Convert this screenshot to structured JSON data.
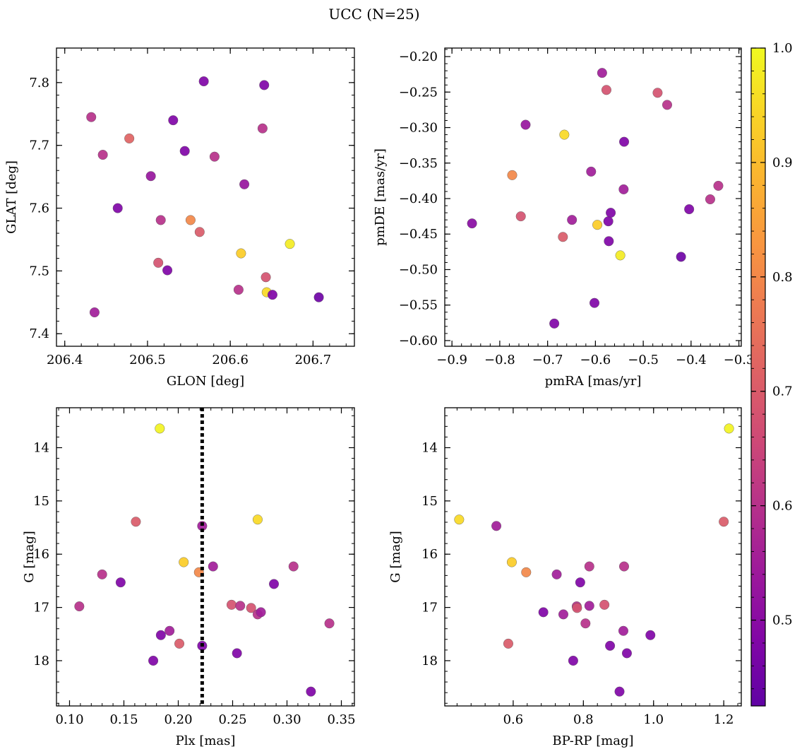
{
  "figure": {
    "title": "UCC (N=25)"
  },
  "colorbar": {
    "colormap": "plasma",
    "range": [
      0.425,
      1.0
    ],
    "ticks": [
      0.5,
      0.6,
      0.7,
      0.8,
      0.9,
      1.0
    ],
    "tick_labels": [
      "0.5",
      "0.6",
      "0.7",
      "0.8",
      "0.9",
      "1.0"
    ]
  },
  "chart_data": [
    {
      "type": "scatter",
      "id": "glon-glat",
      "xlabel": "GLON [deg]",
      "ylabel": "GLAT [deg]",
      "xlim": [
        206.39,
        206.75
      ],
      "ylim": [
        7.38,
        7.855
      ],
      "xticks": [
        206.4,
        206.5,
        206.6,
        206.7
      ],
      "xtick_labels": [
        "206.4",
        "206.5",
        "206.6",
        "206.7"
      ],
      "yticks": [
        7.4,
        7.5,
        7.6,
        7.7,
        7.8
      ],
      "ytick_labels": [
        "7.4",
        "7.5",
        "7.6",
        "7.7",
        "7.8"
      ],
      "points": [
        {
          "x": 206.568,
          "y": 7.802,
          "c": 0.48
        },
        {
          "x": 206.641,
          "y": 7.796,
          "c": 0.48
        },
        {
          "x": 206.432,
          "y": 7.745,
          "c": 0.6
        },
        {
          "x": 206.531,
          "y": 7.74,
          "c": 0.48
        },
        {
          "x": 206.639,
          "y": 7.727,
          "c": 0.6
        },
        {
          "x": 206.478,
          "y": 7.711,
          "c": 0.72
        },
        {
          "x": 206.545,
          "y": 7.691,
          "c": 0.48
        },
        {
          "x": 206.446,
          "y": 7.685,
          "c": 0.6
        },
        {
          "x": 206.581,
          "y": 7.682,
          "c": 0.6
        },
        {
          "x": 206.504,
          "y": 7.651,
          "c": 0.53
        },
        {
          "x": 206.617,
          "y": 7.638,
          "c": 0.53
        },
        {
          "x": 206.464,
          "y": 7.6,
          "c": 0.48
        },
        {
          "x": 206.516,
          "y": 7.581,
          "c": 0.6
        },
        {
          "x": 206.552,
          "y": 7.581,
          "c": 0.8
        },
        {
          "x": 206.563,
          "y": 7.562,
          "c": 0.7
        },
        {
          "x": 206.672,
          "y": 7.543,
          "c": 0.98
        },
        {
          "x": 206.613,
          "y": 7.528,
          "c": 0.93
        },
        {
          "x": 206.513,
          "y": 7.513,
          "c": 0.68
        },
        {
          "x": 206.524,
          "y": 7.501,
          "c": 0.48
        },
        {
          "x": 206.643,
          "y": 7.49,
          "c": 0.68
        },
        {
          "x": 206.61,
          "y": 7.47,
          "c": 0.6
        },
        {
          "x": 206.644,
          "y": 7.466,
          "c": 0.95
        },
        {
          "x": 206.651,
          "y": 7.462,
          "c": 0.48
        },
        {
          "x": 206.707,
          "y": 7.458,
          "c": 0.45
        },
        {
          "x": 206.436,
          "y": 7.434,
          "c": 0.55
        }
      ]
    },
    {
      "type": "scatter",
      "id": "pmra-pmde",
      "xlabel": "pmRA [mas/yr]",
      "ylabel": "pmDE [mas/yr]",
      "xlim": [
        -0.915,
        -0.295
      ],
      "ylim": [
        -0.608,
        -0.188
      ],
      "xticks": [
        -0.9,
        -0.8,
        -0.7,
        -0.6,
        -0.5,
        -0.4,
        -0.3
      ],
      "xtick_labels": [
        "−0.9",
        "−0.8",
        "−0.7",
        "−0.6",
        "−0.5",
        "−0.4",
        "−0.3"
      ],
      "yticks": [
        -0.6,
        -0.55,
        -0.5,
        -0.45,
        -0.4,
        -0.35,
        -0.3,
        -0.25,
        -0.2
      ],
      "ytick_labels": [
        "−0.60",
        "−0.55",
        "−0.50",
        "−0.45",
        "−0.40",
        "−0.35",
        "−0.30",
        "−0.25",
        "−0.20"
      ],
      "points": [
        {
          "x": -0.586,
          "y": -0.223,
          "c": 0.55
        },
        {
          "x": -0.577,
          "y": -0.247,
          "c": 0.68
        },
        {
          "x": -0.47,
          "y": -0.251,
          "c": 0.68
        },
        {
          "x": -0.45,
          "y": -0.268,
          "c": 0.6
        },
        {
          "x": -0.746,
          "y": -0.296,
          "c": 0.53
        },
        {
          "x": -0.665,
          "y": -0.31,
          "c": 0.95
        },
        {
          "x": -0.54,
          "y": -0.32,
          "c": 0.48
        },
        {
          "x": -0.609,
          "y": -0.362,
          "c": 0.55
        },
        {
          "x": -0.774,
          "y": -0.367,
          "c": 0.8
        },
        {
          "x": -0.541,
          "y": -0.387,
          "c": 0.55
        },
        {
          "x": -0.343,
          "y": -0.382,
          "c": 0.6
        },
        {
          "x": -0.36,
          "y": -0.401,
          "c": 0.6
        },
        {
          "x": -0.404,
          "y": -0.415,
          "c": 0.48
        },
        {
          "x": -0.568,
          "y": -0.42,
          "c": 0.48
        },
        {
          "x": -0.756,
          "y": -0.425,
          "c": 0.68
        },
        {
          "x": -0.649,
          "y": -0.43,
          "c": 0.55
        },
        {
          "x": -0.573,
          "y": -0.432,
          "c": 0.48
        },
        {
          "x": -0.596,
          "y": -0.437,
          "c": 0.93
        },
        {
          "x": -0.858,
          "y": -0.435,
          "c": 0.5
        },
        {
          "x": -0.668,
          "y": -0.454,
          "c": 0.7
        },
        {
          "x": -0.572,
          "y": -0.46,
          "c": 0.48
        },
        {
          "x": -0.548,
          "y": -0.48,
          "c": 0.98
        },
        {
          "x": -0.421,
          "y": -0.482,
          "c": 0.45
        },
        {
          "x": -0.602,
          "y": -0.547,
          "c": 0.48
        },
        {
          "x": -0.686,
          "y": -0.576,
          "c": 0.48
        }
      ]
    },
    {
      "type": "scatter",
      "id": "plx-g",
      "xlabel": "Plx [mas]",
      "ylabel": "G [mag]",
      "xlim": [
        0.088,
        0.362
      ],
      "ylim": [
        18.85,
        13.25
      ],
      "y_inverted": true,
      "xticks": [
        0.1,
        0.15,
        0.2,
        0.25,
        0.3,
        0.35
      ],
      "xtick_labels": [
        "0.10",
        "0.15",
        "0.20",
        "0.25",
        "0.30",
        "0.35"
      ],
      "yticks": [
        14,
        15,
        16,
        17,
        18
      ],
      "ytick_labels": [
        "14",
        "15",
        "16",
        "17",
        "18"
      ],
      "vline": 0.222,
      "points": [
        {
          "x": 0.183,
          "y": 13.64,
          "c": 0.99
        },
        {
          "x": 0.161,
          "y": 15.39,
          "c": 0.7
        },
        {
          "x": 0.222,
          "y": 15.47,
          "c": 0.55
        },
        {
          "x": 0.273,
          "y": 15.35,
          "c": 0.95
        },
        {
          "x": 0.205,
          "y": 16.15,
          "c": 0.93
        },
        {
          "x": 0.219,
          "y": 16.34,
          "c": 0.8
        },
        {
          "x": 0.232,
          "y": 16.23,
          "c": 0.55
        },
        {
          "x": 0.306,
          "y": 16.23,
          "c": 0.6
        },
        {
          "x": 0.13,
          "y": 16.38,
          "c": 0.6
        },
        {
          "x": 0.147,
          "y": 16.53,
          "c": 0.48
        },
        {
          "x": 0.288,
          "y": 16.56,
          "c": 0.48
        },
        {
          "x": 0.109,
          "y": 16.98,
          "c": 0.6
        },
        {
          "x": 0.249,
          "y": 16.95,
          "c": 0.68
        },
        {
          "x": 0.257,
          "y": 16.97,
          "c": 0.6
        },
        {
          "x": 0.267,
          "y": 17.01,
          "c": 0.68
        },
        {
          "x": 0.273,
          "y": 17.13,
          "c": 0.6
        },
        {
          "x": 0.276,
          "y": 17.09,
          "c": 0.55
        },
        {
          "x": 0.339,
          "y": 17.3,
          "c": 0.6
        },
        {
          "x": 0.192,
          "y": 17.44,
          "c": 0.55
        },
        {
          "x": 0.184,
          "y": 17.52,
          "c": 0.48
        },
        {
          "x": 0.201,
          "y": 17.68,
          "c": 0.7
        },
        {
          "x": 0.222,
          "y": 17.72,
          "c": 0.48
        },
        {
          "x": 0.254,
          "y": 17.86,
          "c": 0.48
        },
        {
          "x": 0.177,
          "y": 18.0,
          "c": 0.48
        },
        {
          "x": 0.322,
          "y": 18.58,
          "c": 0.48
        }
      ]
    },
    {
      "type": "scatter",
      "id": "bprp-g",
      "xlabel": "BP-RP [mag]",
      "ylabel": "G [mag]",
      "xlim": [
        0.405,
        1.25
      ],
      "ylim": [
        18.85,
        13.25
      ],
      "y_inverted": true,
      "xticks": [
        0.6,
        0.8,
        1.0,
        1.2
      ],
      "xtick_labels": [
        "0.6",
        "0.8",
        "1.0",
        "1.2"
      ],
      "yticks": [
        14,
        15,
        16,
        17,
        18
      ],
      "ytick_labels": [
        "14",
        "15",
        "16",
        "17",
        "18"
      ],
      "points": [
        {
          "x": 1.215,
          "y": 13.64,
          "c": 0.99
        },
        {
          "x": 0.446,
          "y": 15.35,
          "c": 0.95
        },
        {
          "x": 0.552,
          "y": 15.47,
          "c": 0.55
        },
        {
          "x": 1.2,
          "y": 15.39,
          "c": 0.7
        },
        {
          "x": 0.596,
          "y": 16.15,
          "c": 0.93
        },
        {
          "x": 0.637,
          "y": 16.34,
          "c": 0.8
        },
        {
          "x": 0.817,
          "y": 16.23,
          "c": 0.6
        },
        {
          "x": 0.916,
          "y": 16.23,
          "c": 0.6
        },
        {
          "x": 0.724,
          "y": 16.38,
          "c": 0.55
        },
        {
          "x": 0.791,
          "y": 16.53,
          "c": 0.48
        },
        {
          "x": 0.781,
          "y": 16.98,
          "c": 0.6
        },
        {
          "x": 0.817,
          "y": 16.97,
          "c": 0.55
        },
        {
          "x": 0.86,
          "y": 16.95,
          "c": 0.68
        },
        {
          "x": 0.782,
          "y": 17.01,
          "c": 0.68
        },
        {
          "x": 0.686,
          "y": 17.09,
          "c": 0.48
        },
        {
          "x": 0.743,
          "y": 17.13,
          "c": 0.55
        },
        {
          "x": 0.806,
          "y": 17.3,
          "c": 0.6
        },
        {
          "x": 0.914,
          "y": 17.44,
          "c": 0.55
        },
        {
          "x": 0.991,
          "y": 17.52,
          "c": 0.48
        },
        {
          "x": 0.586,
          "y": 17.68,
          "c": 0.7
        },
        {
          "x": 0.876,
          "y": 17.72,
          "c": 0.48
        },
        {
          "x": 0.924,
          "y": 17.86,
          "c": 0.48
        },
        {
          "x": 0.771,
          "y": 18.0,
          "c": 0.48
        },
        {
          "x": 0.903,
          "y": 18.58,
          "c": 0.48
        }
      ]
    }
  ]
}
